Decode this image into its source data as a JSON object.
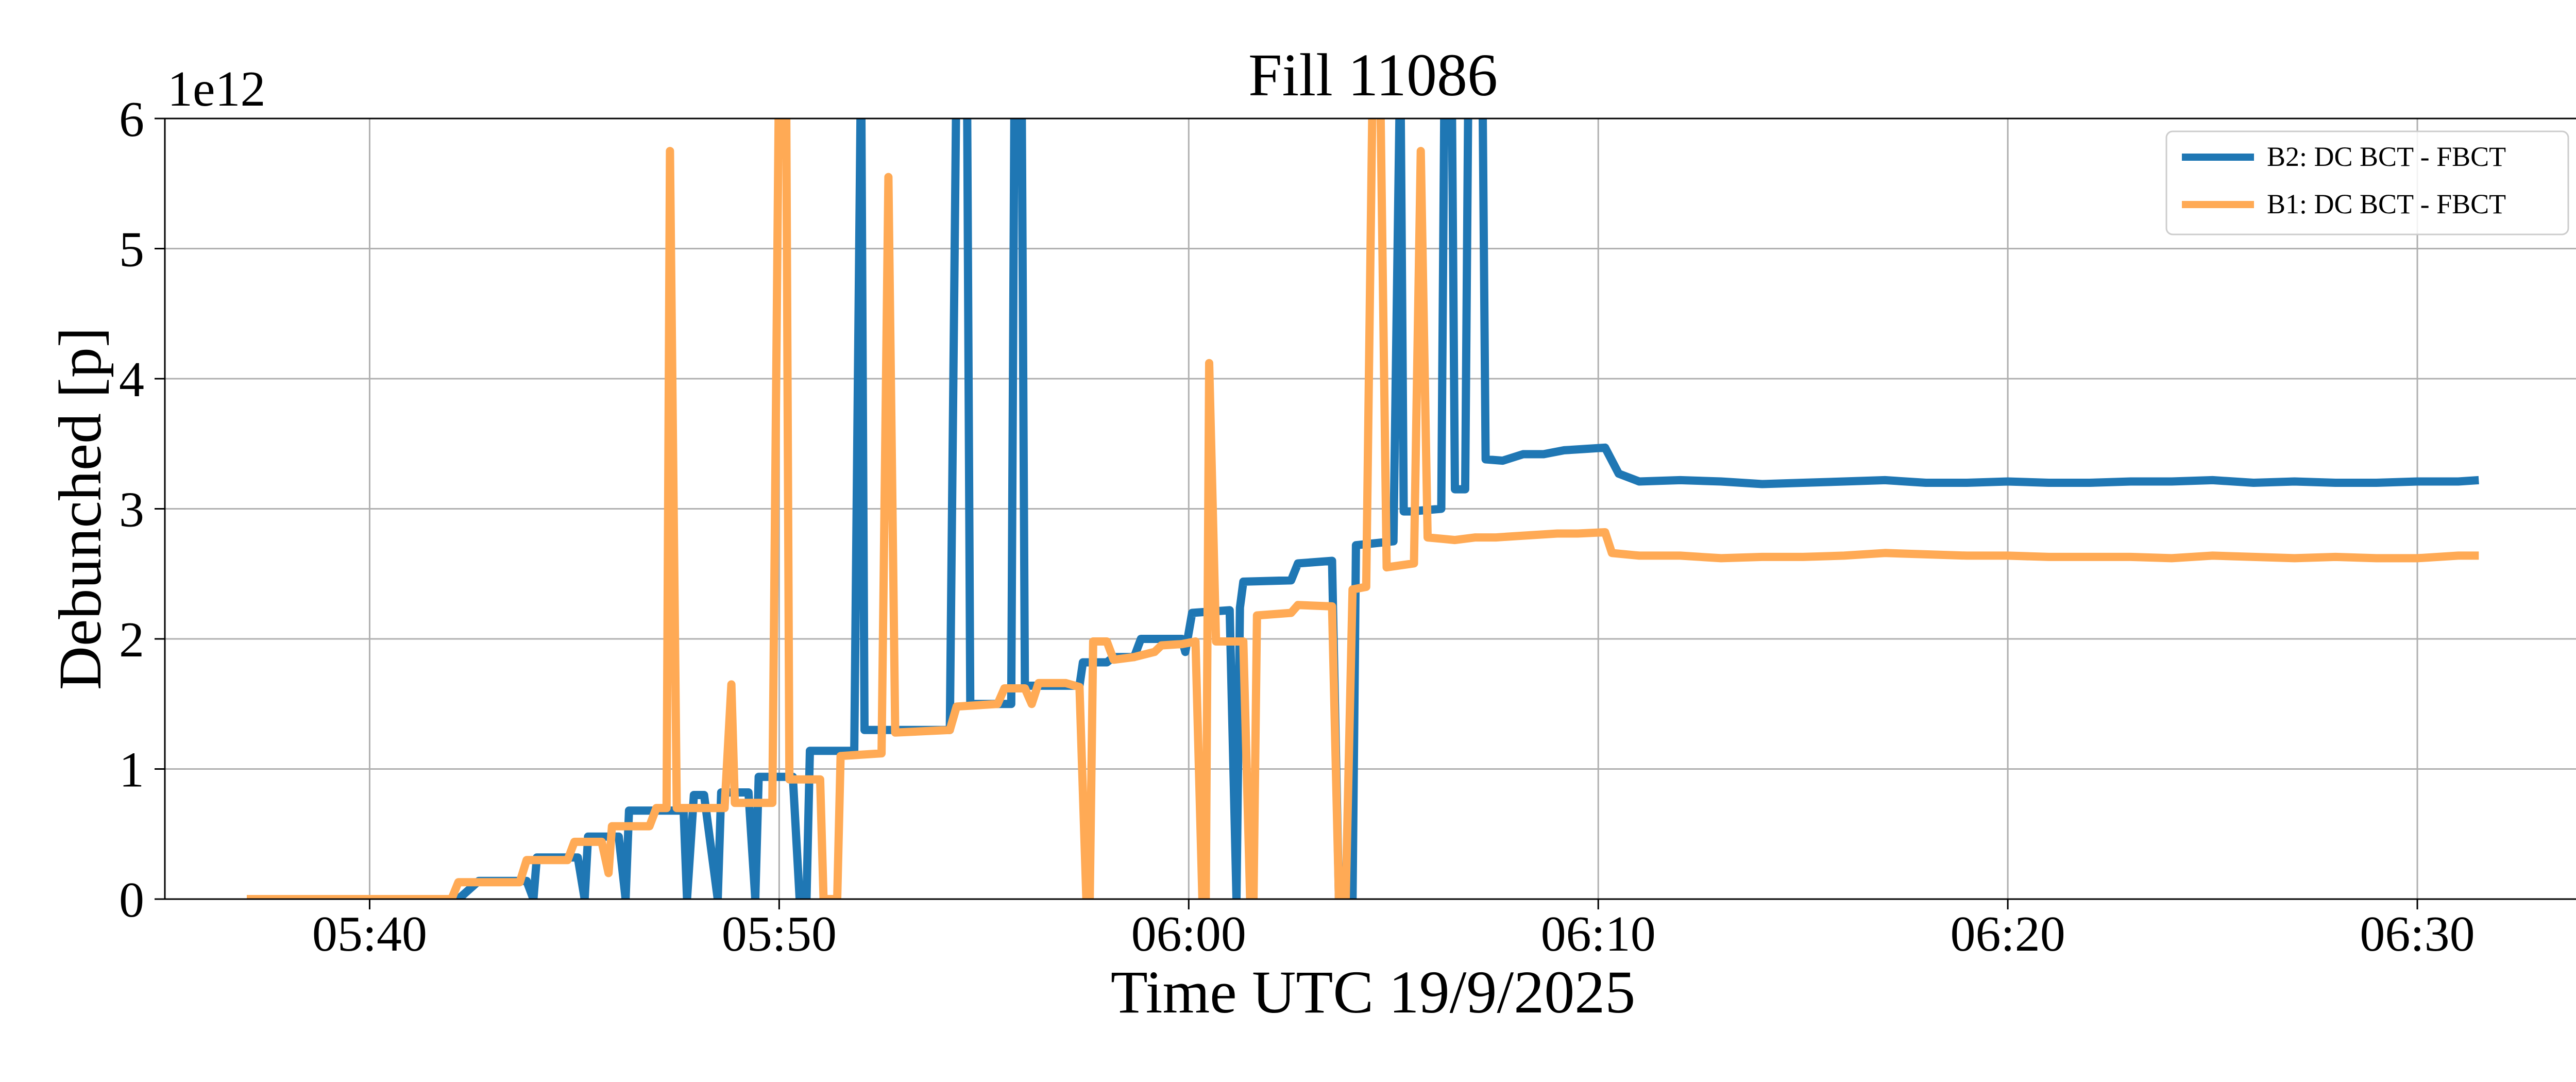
{
  "chart_data": {
    "type": "line",
    "title": "Fill 11086",
    "xlabel": "Time UTC 19/9/2025",
    "ylabel": "Debunched [p]",
    "y_offset_label": "1e12",
    "xlim": [
      "05:35:00",
      "06:34:00"
    ],
    "ylim": [
      0,
      6
    ],
    "y_scale_multiplier": 1000000000000.0,
    "xticks": [
      "05:40",
      "05:50",
      "06:00",
      "06:10",
      "06:20",
      "06:30"
    ],
    "yticks": [
      "0",
      "1",
      "2",
      "3",
      "4",
      "5",
      "6"
    ],
    "grid": true,
    "legend_position": "top-right",
    "series": [
      {
        "name": "B2: DC BCT - FBCT",
        "color": "#1f77b4",
        "points": [
          [
            "05:37:00",
            0.0
          ],
          [
            "05:40:00",
            0.0
          ],
          [
            "05:41:00",
            0.0
          ],
          [
            "05:42:10",
            0.0
          ],
          [
            "05:42:40",
            0.14
          ],
          [
            "05:43:50",
            0.14
          ],
          [
            "05:44:00",
            0.0
          ],
          [
            "05:44:05",
            0.32
          ],
          [
            "05:45:05",
            0.32
          ],
          [
            "05:45:15",
            0.0
          ],
          [
            "05:45:20",
            0.48
          ],
          [
            "05:46:05",
            0.48
          ],
          [
            "05:46:15",
            0.0
          ],
          [
            "05:46:20",
            0.68
          ],
          [
            "05:47:40",
            0.68
          ],
          [
            "05:47:45",
            0.0
          ],
          [
            "05:47:55",
            0.8
          ],
          [
            "05:48:10",
            0.8
          ],
          [
            "05:48:30",
            0.0
          ],
          [
            "05:48:35",
            0.82
          ],
          [
            "05:49:15",
            0.82
          ],
          [
            "05:49:25",
            0.0
          ],
          [
            "05:49:30",
            0.94
          ],
          [
            "05:50:20",
            0.94
          ],
          [
            "05:50:30",
            0.0
          ],
          [
            "05:50:40",
            0.0
          ],
          [
            "05:50:45",
            1.14
          ],
          [
            "05:51:50",
            1.14
          ],
          [
            "05:52:00",
            6.5
          ],
          [
            "05:52:05",
            1.3
          ],
          [
            "05:54:10",
            1.3
          ],
          [
            "05:54:20",
            6.5
          ],
          [
            "05:54:35",
            6.5
          ],
          [
            "05:54:40",
            1.5
          ],
          [
            "05:55:40",
            1.5
          ],
          [
            "05:55:45",
            6.5
          ],
          [
            "05:55:55",
            6.5
          ],
          [
            "05:56:00",
            1.64
          ],
          [
            "05:57:20",
            1.64
          ],
          [
            "05:57:25",
            1.82
          ],
          [
            "05:58:00",
            1.82
          ],
          [
            "05:58:10",
            1.86
          ],
          [
            "05:58:40",
            1.86
          ],
          [
            "05:58:50",
            2.0
          ],
          [
            "05:59:50",
            2.0
          ],
          [
            "05:59:55",
            1.9
          ],
          [
            "06:00:05",
            2.2
          ],
          [
            "06:01:00",
            2.22
          ],
          [
            "06:01:10",
            0.0
          ],
          [
            "06:01:15",
            2.24
          ],
          [
            "06:01:20",
            2.44
          ],
          [
            "06:02:30",
            2.45
          ],
          [
            "06:02:40",
            2.58
          ],
          [
            "06:03:30",
            2.6
          ],
          [
            "06:03:40",
            0.0
          ],
          [
            "06:03:45",
            0.0
          ],
          [
            "06:03:50",
            0.0
          ],
          [
            "06:04:00",
            0.0
          ],
          [
            "06:04:05",
            2.72
          ],
          [
            "06:05:00",
            2.75
          ],
          [
            "06:05:10",
            6.5
          ],
          [
            "06:05:15",
            2.98
          ],
          [
            "06:05:25",
            2.98
          ],
          [
            "06:06:10",
            3.0
          ],
          [
            "06:06:15",
            6.5
          ],
          [
            "06:06:25",
            6.5
          ],
          [
            "06:06:30",
            3.15
          ],
          [
            "06:06:45",
            3.15
          ],
          [
            "06:06:50",
            6.5
          ],
          [
            "06:07:10",
            6.5
          ],
          [
            "06:07:15",
            3.38
          ],
          [
            "06:07:40",
            3.37
          ],
          [
            "06:08:10",
            3.42
          ],
          [
            "06:08:40",
            3.42
          ],
          [
            "06:09:10",
            3.45
          ],
          [
            "06:09:40",
            3.46
          ],
          [
            "06:10:10",
            3.47
          ],
          [
            "06:10:30",
            3.27
          ],
          [
            "06:11:00",
            3.21
          ],
          [
            "06:12:00",
            3.22
          ],
          [
            "06:13:00",
            3.21
          ],
          [
            "06:14:00",
            3.19
          ],
          [
            "06:15:00",
            3.2
          ],
          [
            "06:16:00",
            3.21
          ],
          [
            "06:17:00",
            3.22
          ],
          [
            "06:18:00",
            3.2
          ],
          [
            "06:19:00",
            3.2
          ],
          [
            "06:20:00",
            3.21
          ],
          [
            "06:21:00",
            3.2
          ],
          [
            "06:22:00",
            3.2
          ],
          [
            "06:23:00",
            3.21
          ],
          [
            "06:24:00",
            3.21
          ],
          [
            "06:25:00",
            3.22
          ],
          [
            "06:26:00",
            3.2
          ],
          [
            "06:27:00",
            3.21
          ],
          [
            "06:28:00",
            3.2
          ],
          [
            "06:29:00",
            3.2
          ],
          [
            "06:30:00",
            3.21
          ],
          [
            "06:31:00",
            3.21
          ],
          [
            "06:31:30",
            3.22
          ]
        ]
      },
      {
        "name": "B1: DC BCT - FBCT",
        "color": "#ffaa55",
        "points": [
          [
            "05:37:00",
            0.0
          ],
          [
            "05:40:00",
            0.0
          ],
          [
            "05:42:00",
            0.0
          ],
          [
            "05:42:10",
            0.13
          ],
          [
            "05:43:40",
            0.13
          ],
          [
            "05:43:50",
            0.3
          ],
          [
            "05:44:50",
            0.3
          ],
          [
            "05:45:00",
            0.44
          ],
          [
            "05:45:40",
            0.44
          ],
          [
            "05:45:50",
            0.2
          ],
          [
            "05:45:55",
            0.56
          ],
          [
            "05:46:50",
            0.56
          ],
          [
            "05:47:00",
            0.7
          ],
          [
            "05:47:15",
            0.7
          ],
          [
            "05:47:20",
            5.75
          ],
          [
            "05:47:30",
            0.7
          ],
          [
            "05:48:40",
            0.7
          ],
          [
            "05:48:50",
            1.65
          ],
          [
            "05:48:55",
            0.74
          ],
          [
            "05:49:50",
            0.74
          ],
          [
            "05:50:00",
            6.5
          ],
          [
            "05:50:10",
            6.5
          ],
          [
            "05:50:15",
            0.92
          ],
          [
            "05:51:00",
            0.92
          ],
          [
            "05:51:05",
            0.0
          ],
          [
            "05:51:25",
            0.0
          ],
          [
            "05:51:30",
            1.1
          ],
          [
            "05:52:30",
            1.12
          ],
          [
            "05:52:40",
            5.55
          ],
          [
            "05:52:50",
            1.28
          ],
          [
            "05:54:10",
            1.3
          ],
          [
            "05:54:20",
            1.48
          ],
          [
            "05:55:20",
            1.5
          ],
          [
            "05:55:30",
            1.62
          ],
          [
            "05:56:00",
            1.62
          ],
          [
            "05:56:10",
            1.5
          ],
          [
            "05:56:20",
            1.66
          ],
          [
            "05:57:00",
            1.66
          ],
          [
            "05:57:20",
            1.63
          ],
          [
            "05:57:30",
            0.0
          ],
          [
            "05:57:35",
            0.0
          ],
          [
            "05:57:40",
            1.98
          ],
          [
            "05:58:00",
            1.98
          ],
          [
            "05:58:10",
            1.84
          ],
          [
            "05:58:40",
            1.86
          ],
          [
            "05:59:10",
            1.9
          ],
          [
            "05:59:20",
            1.95
          ],
          [
            "05:59:50",
            1.96
          ],
          [
            "06:00:10",
            1.98
          ],
          [
            "06:00:20",
            0.0
          ],
          [
            "06:00:25",
            0.0
          ],
          [
            "06:00:30",
            4.12
          ],
          [
            "06:00:40",
            1.98
          ],
          [
            "06:01:20",
            1.98
          ],
          [
            "06:01:30",
            0.0
          ],
          [
            "06:01:35",
            0.0
          ],
          [
            "06:01:40",
            2.18
          ],
          [
            "06:02:30",
            2.2
          ],
          [
            "06:02:40",
            2.26
          ],
          [
            "06:03:30",
            2.25
          ],
          [
            "06:03:40",
            0.0
          ],
          [
            "06:03:50",
            0.0
          ],
          [
            "06:04:00",
            2.38
          ],
          [
            "06:04:20",
            2.4
          ],
          [
            "06:04:30",
            6.5
          ],
          [
            "06:04:40",
            6.5
          ],
          [
            "06:04:50",
            2.55
          ],
          [
            "06:05:30",
            2.58
          ],
          [
            "06:05:40",
            5.75
          ],
          [
            "06:05:50",
            2.78
          ],
          [
            "06:06:30",
            2.76
          ],
          [
            "06:07:00",
            2.78
          ],
          [
            "06:07:30",
            2.78
          ],
          [
            "06:08:00",
            2.79
          ],
          [
            "06:08:30",
            2.8
          ],
          [
            "06:09:00",
            2.81
          ],
          [
            "06:09:30",
            2.81
          ],
          [
            "06:10:10",
            2.82
          ],
          [
            "06:10:20",
            2.66
          ],
          [
            "06:11:00",
            2.64
          ],
          [
            "06:12:00",
            2.64
          ],
          [
            "06:13:00",
            2.62
          ],
          [
            "06:14:00",
            2.63
          ],
          [
            "06:15:00",
            2.63
          ],
          [
            "06:16:00",
            2.64
          ],
          [
            "06:17:00",
            2.66
          ],
          [
            "06:18:00",
            2.65
          ],
          [
            "06:19:00",
            2.64
          ],
          [
            "06:20:00",
            2.64
          ],
          [
            "06:21:00",
            2.63
          ],
          [
            "06:22:00",
            2.63
          ],
          [
            "06:23:00",
            2.63
          ],
          [
            "06:24:00",
            2.62
          ],
          [
            "06:25:00",
            2.64
          ],
          [
            "06:26:00",
            2.63
          ],
          [
            "06:27:00",
            2.62
          ],
          [
            "06:28:00",
            2.63
          ],
          [
            "06:29:00",
            2.62
          ],
          [
            "06:30:00",
            2.62
          ],
          [
            "06:31:00",
            2.64
          ],
          [
            "06:31:30",
            2.64
          ]
        ]
      }
    ]
  }
}
